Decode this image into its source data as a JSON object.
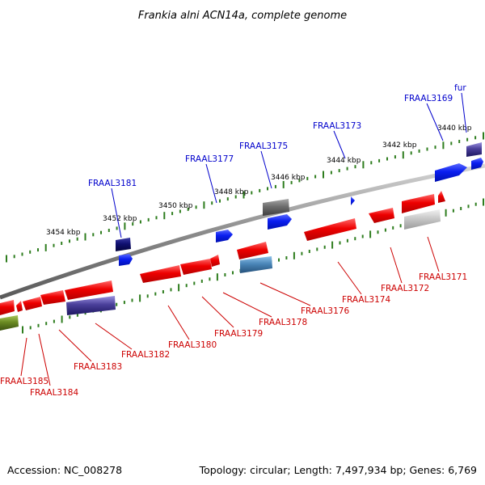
{
  "title": "Frankia alni ACN14a, complete genome",
  "footer": {
    "accession": "Accession: NC_008278",
    "summary": "Topology: circular; Length: 7,497,934 bp; Genes: 6,769"
  },
  "scale": {
    "labels": [
      "3454 kbp",
      "3452 kbp",
      "3450 kbp",
      "3448 kbp",
      "3446 kbp",
      "3444 kbp",
      "3442 kbp",
      "3440 kbp"
    ]
  },
  "colors": {
    "backbone": "#8c8c8c",
    "forward_label": "#0000cc",
    "reverse_label": "#cc0000",
    "tick": "#2e7d1e",
    "cds_red": "#ee0000",
    "cds_blue": "#0a1ef0",
    "cds_navy": "#101070",
    "cds_gray": "#6e6e6e",
    "cds_purple": "#4a3f9a",
    "cds_light_gray": "#bdbdbd",
    "cds_steel": "#4a86b8",
    "cds_olive": "#6a8a22"
  },
  "forward_genes": [
    {
      "label": "fur"
    },
    {
      "label": "FRAAL3169"
    },
    {
      "label": "FRAAL3173"
    },
    {
      "label": "FRAAL3175"
    },
    {
      "label": "FRAAL3177"
    },
    {
      "label": "FRAAL3181"
    }
  ],
  "reverse_genes": [
    {
      "label": "FRAAL3171"
    },
    {
      "label": "FRAAL3172"
    },
    {
      "label": "FRAAL3174"
    },
    {
      "label": "FRAAL3176"
    },
    {
      "label": "FRAAL3178"
    },
    {
      "label": "FRAAL3179"
    },
    {
      "label": "FRAAL3180"
    },
    {
      "label": "FRAAL3182"
    },
    {
      "label": "FRAAL3183"
    },
    {
      "label": "FRAAL3184"
    },
    {
      "label": "FRAAL3185"
    }
  ]
}
